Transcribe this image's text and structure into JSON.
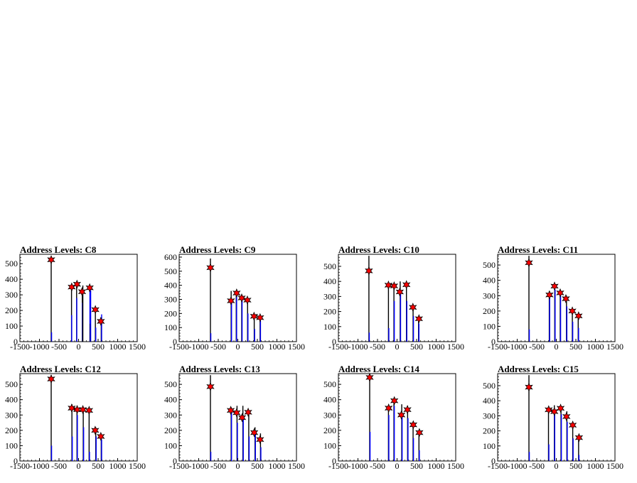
{
  "chart_data": [
    {
      "type": "bar",
      "title": "Address Levels: C8",
      "xlim": [
        -1500,
        1500
      ],
      "ylim": [
        0,
        560
      ],
      "xticks": [
        -1500,
        -1000,
        -500,
        0,
        500,
        1000,
        1500
      ],
      "xtick_labels": [
        "-1500",
        "-1000",
        "-500",
        "0",
        "500",
        "1000",
        "1500"
      ],
      "yticks": [
        0,
        100,
        200,
        300,
        400,
        500
      ],
      "ytick_labels": [
        "0",
        "100",
        "200",
        "300",
        "400",
        "500"
      ],
      "histogram": [
        [
          -700,
          530
        ],
        [
          -690,
          60
        ],
        [
          -180,
          345
        ],
        [
          -175,
          170
        ],
        [
          -50,
          365
        ],
        [
          -45,
          280
        ],
        [
          95,
          320
        ],
        [
          100,
          250
        ],
        [
          110,
          360
        ],
        [
          290,
          340
        ],
        [
          300,
          115
        ],
        [
          310,
          330
        ],
        [
          430,
          200
        ],
        [
          440,
          90
        ],
        [
          580,
          130
        ],
        [
          590,
          175
        ]
      ],
      "peaks": [
        [
          -700,
          525
        ],
        [
          -175,
          350
        ],
        [
          -40,
          368
        ],
        [
          90,
          320
        ],
        [
          285,
          345
        ],
        [
          430,
          205
        ],
        [
          570,
          130
        ]
      ]
    },
    {
      "type": "bar",
      "title": "Address Levels: C9",
      "xlim": [
        -1500,
        1500
      ],
      "ylim": [
        0,
        620
      ],
      "xticks": [
        -1500,
        -1000,
        -500,
        0,
        500,
        1000,
        1500
      ],
      "xtick_labels": [
        "-1500",
        "-1000",
        "-500",
        "0",
        "500",
        "1000",
        "1500"
      ],
      "yticks": [
        0,
        100,
        200,
        300,
        400,
        500,
        600
      ],
      "ytick_labels": [
        "0",
        "100",
        "200",
        "300",
        "400",
        "500",
        "600"
      ],
      "histogram": [
        [
          -700,
          590
        ],
        [
          -690,
          60
        ],
        [
          -170,
          360
        ],
        [
          -160,
          290
        ],
        [
          -40,
          360
        ],
        [
          -30,
          330
        ],
        [
          100,
          300
        ],
        [
          110,
          330
        ],
        [
          250,
          300
        ],
        [
          260,
          200
        ],
        [
          420,
          160
        ],
        [
          430,
          90
        ],
        [
          570,
          180
        ],
        [
          580,
          150
        ]
      ],
      "peaks": [
        [
          -700,
          525
        ],
        [
          -175,
          290
        ],
        [
          -30,
          345
        ],
        [
          100,
          310
        ],
        [
          245,
          295
        ],
        [
          415,
          180
        ],
        [
          570,
          170
        ]
      ]
    },
    {
      "type": "bar",
      "title": "Address Levels: C10",
      "xlim": [
        -1500,
        1500
      ],
      "ylim": [
        0,
        580
      ],
      "xticks": [
        -1500,
        -1000,
        -500,
        0,
        500,
        1000,
        1500
      ],
      "xtick_labels": [
        "-1500",
        "-1000",
        "-500",
        "0",
        "500",
        "1000",
        "1500"
      ],
      "yticks": [
        0,
        100,
        200,
        300,
        400,
        500
      ],
      "ytick_labels": [
        "0",
        "100",
        "200",
        "300",
        "400",
        "500"
      ],
      "histogram": [
        [
          -720,
          570
        ],
        [
          -710,
          60
        ],
        [
          -220,
          380
        ],
        [
          -210,
          90
        ],
        [
          -80,
          370
        ],
        [
          -70,
          270
        ],
        [
          80,
          400
        ],
        [
          90,
          340
        ],
        [
          240,
          380
        ],
        [
          250,
          270
        ],
        [
          410,
          230
        ],
        [
          420,
          170
        ],
        [
          550,
          160
        ],
        [
          560,
          120
        ]
      ],
      "peaks": [
        [
          -720,
          470
        ],
        [
          -220,
          375
        ],
        [
          -75,
          370
        ],
        [
          70,
          330
        ],
        [
          240,
          378
        ],
        [
          405,
          228
        ],
        [
          560,
          152
        ]
      ]
    },
    {
      "type": "bar",
      "title": "Address Levels: C11",
      "xlim": [
        -1500,
        1500
      ],
      "ylim": [
        0,
        570
      ],
      "xticks": [
        -1500,
        -1000,
        -500,
        0,
        500,
        1000,
        1500
      ],
      "xtick_labels": [
        "-1500",
        "-1000",
        "-500",
        "0",
        "500",
        "1000",
        "1500"
      ],
      "yticks": [
        0,
        100,
        200,
        300,
        400,
        500
      ],
      "ytick_labels": [
        "0",
        "100",
        "200",
        "300",
        "400",
        "500"
      ],
      "histogram": [
        [
          -700,
          560
        ],
        [
          -690,
          80
        ],
        [
          -180,
          330
        ],
        [
          -170,
          300
        ],
        [
          -40,
          370
        ],
        [
          -30,
          340
        ],
        [
          100,
          330
        ],
        [
          110,
          300
        ],
        [
          260,
          300
        ],
        [
          270,
          230
        ],
        [
          410,
          200
        ],
        [
          420,
          130
        ],
        [
          560,
          170
        ],
        [
          570,
          90
        ]
      ],
      "peaks": [
        [
          -700,
          515
        ],
        [
          -175,
          305
        ],
        [
          -45,
          362
        ],
        [
          100,
          318
        ],
        [
          245,
          280
        ],
        [
          410,
          200
        ],
        [
          570,
          168
        ]
      ]
    },
    {
      "type": "bar",
      "title": "Address Levels: C12",
      "xlim": [
        -1500,
        1500
      ],
      "ylim": [
        0,
        570
      ],
      "xticks": [
        -1500,
        -1000,
        -500,
        0,
        500,
        1000,
        1500
      ],
      "xtick_labels": [
        "-1500",
        "-1000",
        "-500",
        "0",
        "500",
        "1000",
        "1500"
      ],
      "yticks": [
        0,
        100,
        200,
        300,
        400,
        500
      ],
      "ytick_labels": [
        "0",
        "100",
        "200",
        "300",
        "400",
        "500"
      ],
      "histogram": [
        [
          -700,
          560
        ],
        [
          -690,
          100
        ],
        [
          -170,
          370
        ],
        [
          -160,
          160
        ],
        [
          -40,
          360
        ],
        [
          -30,
          300
        ],
        [
          120,
          350
        ],
        [
          130,
          220
        ],
        [
          270,
          340
        ],
        [
          280,
          60
        ],
        [
          440,
          220
        ],
        [
          450,
          160
        ],
        [
          580,
          170
        ],
        [
          590,
          140
        ]
      ],
      "peaks": [
        [
          -700,
          535
        ],
        [
          -175,
          345
        ],
        [
          -35,
          335
        ],
        [
          110,
          335
        ],
        [
          270,
          330
        ],
        [
          425,
          200
        ],
        [
          570,
          160
        ]
      ]
    },
    {
      "type": "bar",
      "title": "Address Levels: C13",
      "xlim": [
        -1500,
        1500
      ],
      "ylim": [
        0,
        570
      ],
      "xticks": [
        -1500,
        -1000,
        -500,
        0,
        500,
        1000,
        1500
      ],
      "xtick_labels": [
        "-1500",
        "-1000",
        "-500",
        "0",
        "500",
        "1000",
        "1500"
      ],
      "yticks": [
        0,
        100,
        200,
        300,
        400,
        500
      ],
      "ytick_labels": [
        "0",
        "100",
        "200",
        "300",
        "400",
        "500"
      ],
      "histogram": [
        [
          -700,
          560
        ],
        [
          -690,
          60
        ],
        [
          -170,
          350
        ],
        [
          -160,
          330
        ],
        [
          -20,
          360
        ],
        [
          -10,
          250
        ],
        [
          130,
          360
        ],
        [
          140,
          280
        ],
        [
          280,
          330
        ],
        [
          290,
          160
        ],
        [
          440,
          220
        ],
        [
          450,
          190
        ],
        [
          580,
          180
        ],
        [
          590,
          90
        ]
      ],
      "peaks": [
        [
          -700,
          485
        ],
        [
          -180,
          330
        ],
        [
          -30,
          315
        ],
        [
          110,
          283
        ],
        [
          265,
          318
        ],
        [
          420,
          185
        ],
        [
          570,
          140
        ]
      ]
    },
    {
      "type": "bar",
      "title": "Address Levels: C14",
      "xlim": [
        -1500,
        1500
      ],
      "ylim": [
        0,
        570
      ],
      "xticks": [
        -1500,
        -1000,
        -500,
        0,
        500,
        1000,
        1500
      ],
      "xtick_labels": [
        "-1500",
        "-1000",
        "-500",
        "0",
        "500",
        "1000",
        "1500"
      ],
      "yticks": [
        0,
        100,
        200,
        300,
        400,
        500
      ],
      "ytick_labels": [
        "0",
        "100",
        "200",
        "300",
        "400",
        "500"
      ],
      "histogram": [
        [
          -700,
          560
        ],
        [
          -690,
          190
        ],
        [
          -220,
          360
        ],
        [
          -210,
          300
        ],
        [
          -80,
          400
        ],
        [
          -70,
          360
        ],
        [
          120,
          370
        ],
        [
          130,
          300
        ],
        [
          270,
          360
        ],
        [
          280,
          280
        ],
        [
          410,
          240
        ],
        [
          420,
          150
        ],
        [
          560,
          190
        ],
        [
          570,
          70
        ]
      ],
      "peaks": [
        [
          -700,
          545
        ],
        [
          -215,
          345
        ],
        [
          -70,
          393
        ],
        [
          110,
          300
        ],
        [
          265,
          335
        ],
        [
          415,
          236
        ],
        [
          570,
          185
        ]
      ]
    },
    {
      "type": "bar",
      "title": "Address Levels: C15",
      "xlim": [
        -1500,
        1500
      ],
      "ylim": [
        0,
        580
      ],
      "xticks": [
        -1500,
        -1000,
        -500,
        0,
        500,
        1000,
        1500
      ],
      "xtick_labels": [
        "-1500",
        "-1000",
        "-500",
        "0",
        "500",
        "1000",
        "1500"
      ],
      "yticks": [
        0,
        100,
        200,
        300,
        400,
        500
      ],
      "ytick_labels": [
        "0",
        "100",
        "200",
        "300",
        "400",
        "500"
      ],
      "histogram": [
        [
          -700,
          570
        ],
        [
          -690,
          60
        ],
        [
          -200,
          360
        ],
        [
          -190,
          110
        ],
        [
          -50,
          370
        ],
        [
          -40,
          330
        ],
        [
          120,
          360
        ],
        [
          130,
          310
        ],
        [
          270,
          330
        ],
        [
          280,
          260
        ],
        [
          420,
          230
        ],
        [
          430,
          150
        ],
        [
          570,
          160
        ],
        [
          580,
          40
        ]
      ],
      "peaks": [
        [
          -700,
          490
        ],
        [
          -195,
          340
        ],
        [
          -50,
          328
        ],
        [
          110,
          350
        ],
        [
          260,
          295
        ],
        [
          420,
          238
        ],
        [
          580,
          155
        ]
      ]
    }
  ]
}
